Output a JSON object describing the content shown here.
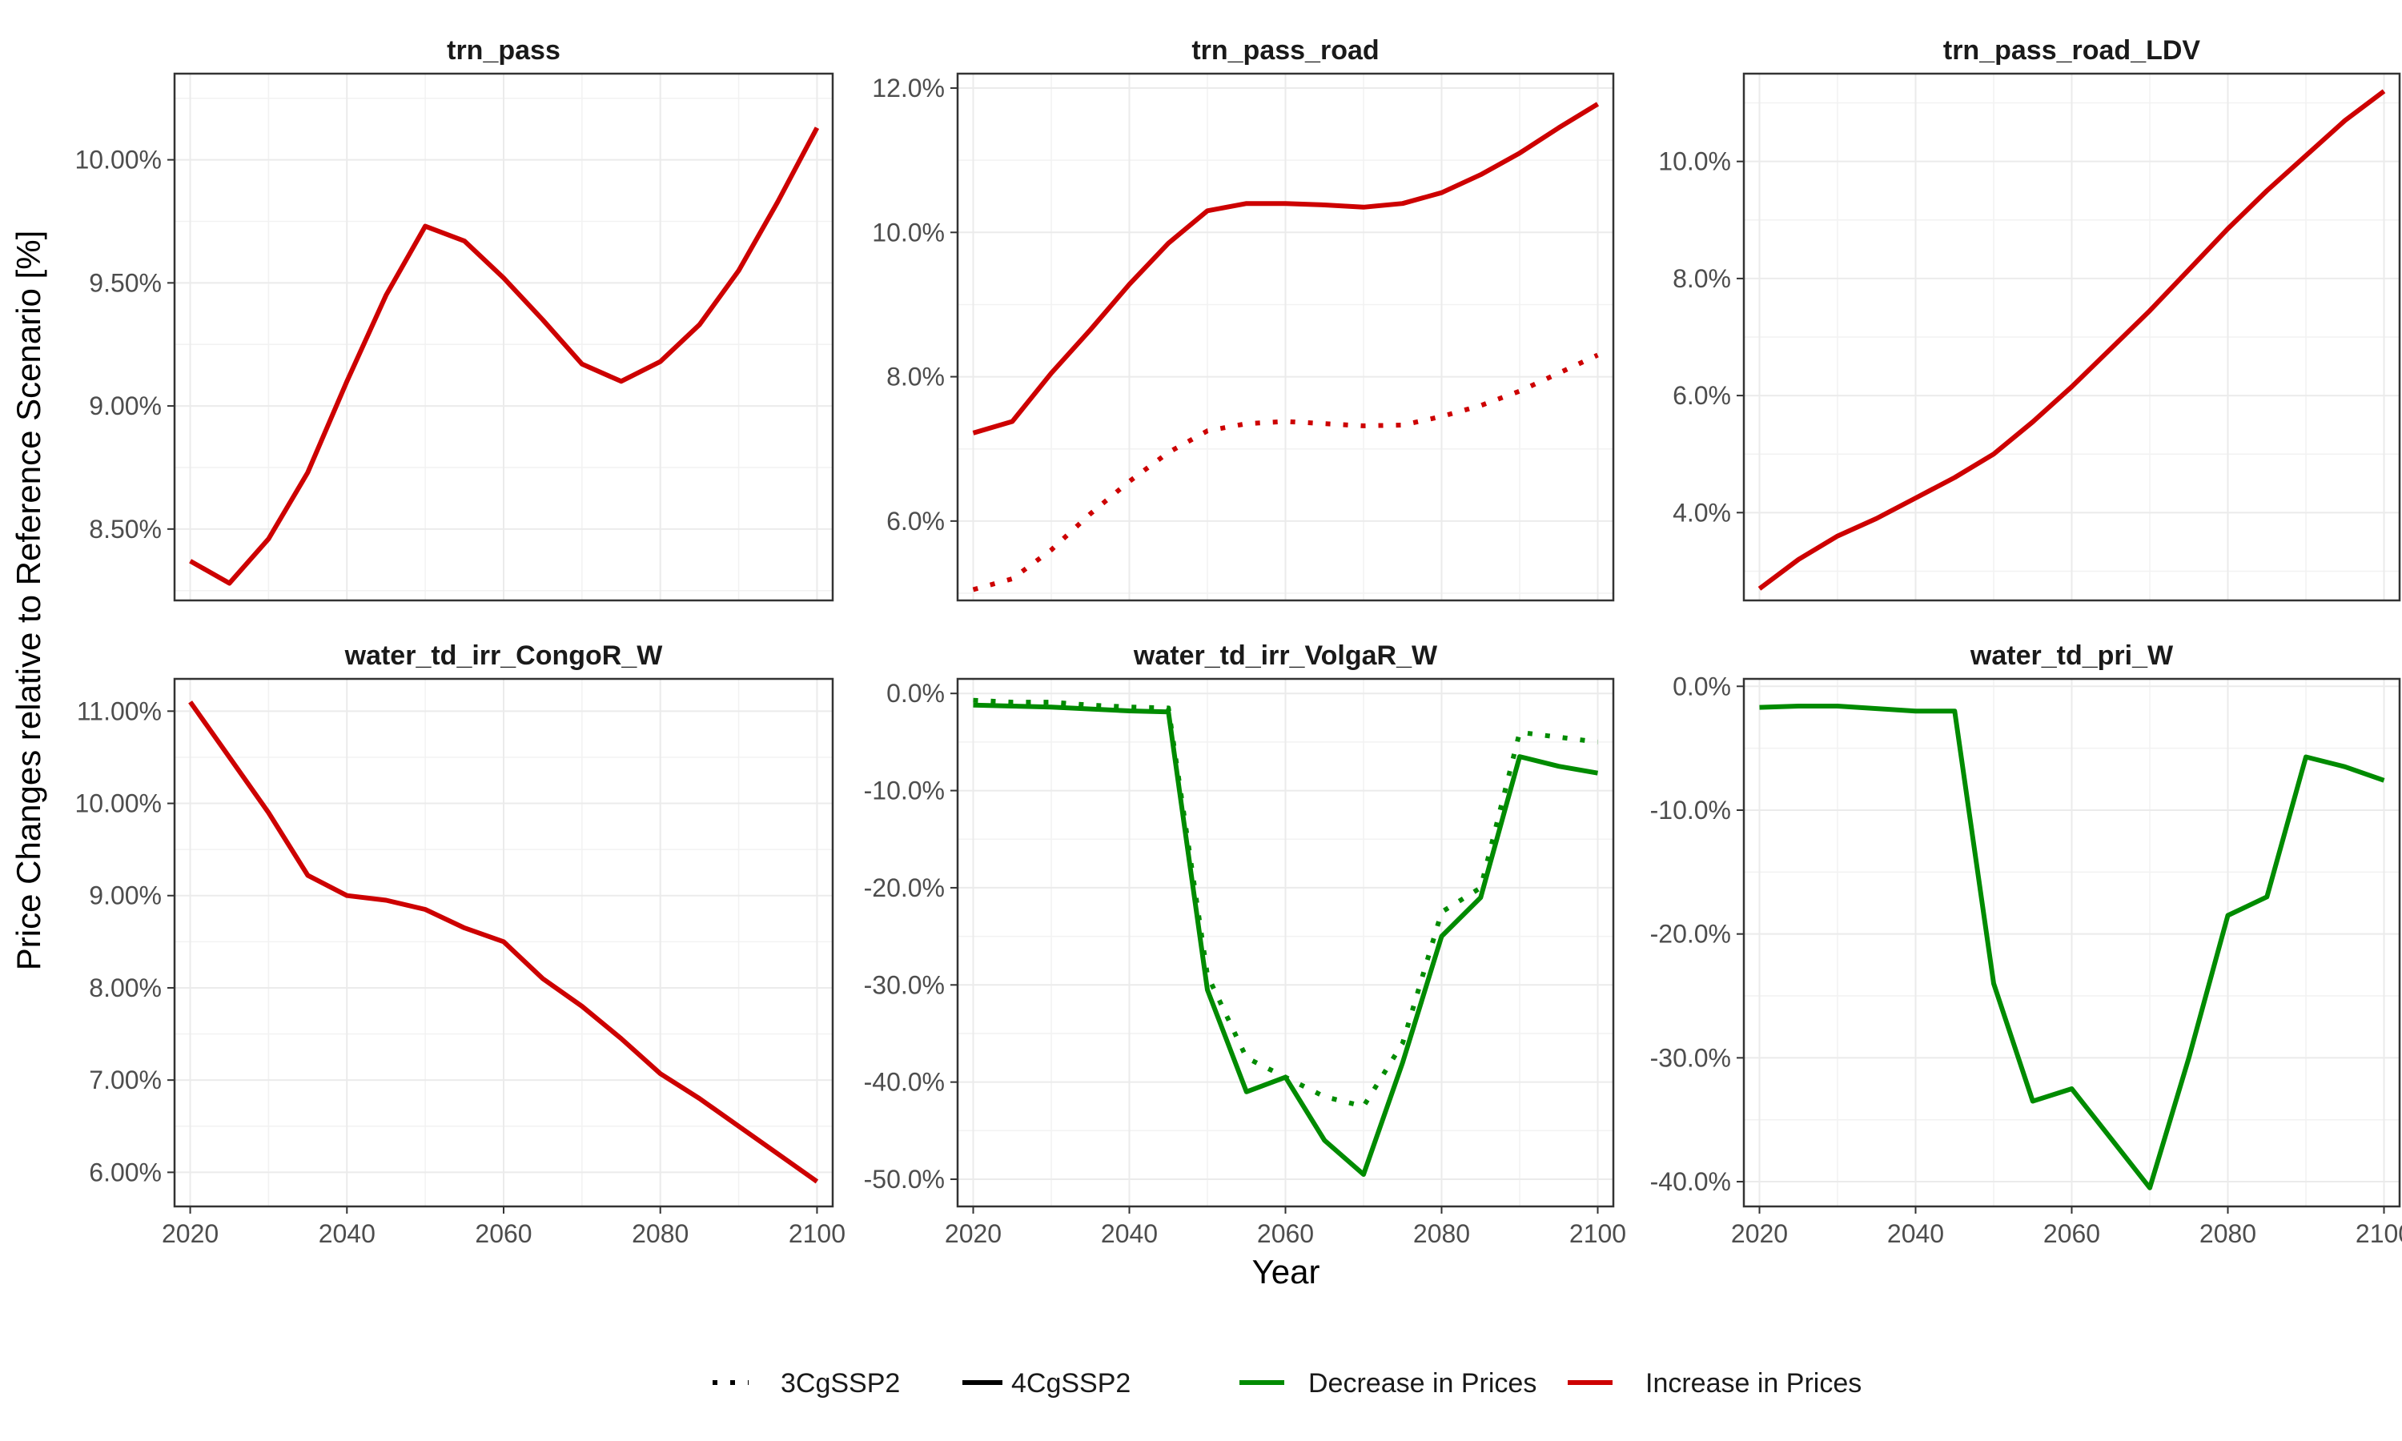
{
  "chart_data": {
    "type": "line",
    "xlabel": "Year",
    "ylabel": "Price Changes relative to Reference Scenario [%]",
    "legend": {
      "placement": "bottom",
      "linetype": [
        {
          "label": "3CgSSP2",
          "style": "dotted"
        },
        {
          "label": "4CgSSP2",
          "style": "solid"
        }
      ],
      "color": [
        {
          "label": "Decrease in Prices",
          "color": "#008B00"
        },
        {
          "label": "Increase in Prices",
          "color": "#CD0000"
        }
      ]
    },
    "x_ticks": [
      2020,
      2040,
      2060,
      2080,
      2100
    ],
    "xlim": [
      2018,
      2102
    ],
    "grid": true,
    "panels": [
      {
        "title": "trn_pass",
        "ylim": [
          8.21,
          10.35
        ],
        "y_ticks": [
          8.5,
          9.0,
          9.5,
          10.0
        ],
        "y_tick_labels": [
          "8.50%",
          "9.00%",
          "9.50%",
          "10.00%"
        ],
        "series": [
          {
            "scenario": "4CgSSP2",
            "style": "solid",
            "direction": "Increase in Prices",
            "color": "#CD0000",
            "x": [
              2020,
              2025,
              2030,
              2035,
              2040,
              2045,
              2050,
              2055,
              2060,
              2065,
              2070,
              2075,
              2080,
              2085,
              2090,
              2095,
              2100
            ],
            "y": [
              8.37,
              8.28,
              8.46,
              8.73,
              9.1,
              9.45,
              9.73,
              9.67,
              9.52,
              9.35,
              9.17,
              9.1,
              9.18,
              9.33,
              9.55,
              9.83,
              10.13
            ]
          }
        ]
      },
      {
        "title": "trn_pass_road",
        "ylim": [
          4.9,
          12.2
        ],
        "y_ticks": [
          6,
          8,
          10,
          12
        ],
        "y_tick_labels": [
          "6.0%",
          "8.0%",
          "10.0%",
          "12.0%"
        ],
        "series": [
          {
            "scenario": "3CgSSP2",
            "style": "dotted",
            "direction": "Increase in Prices",
            "color": "#CD0000",
            "x": [
              2020,
              2025,
              2030,
              2035,
              2040,
              2045,
              2050,
              2055,
              2060,
              2065,
              2070,
              2075,
              2080,
              2085,
              2090,
              2095,
              2100
            ],
            "y": [
              5.05,
              5.2,
              5.6,
              6.1,
              6.55,
              6.95,
              7.25,
              7.35,
              7.38,
              7.35,
              7.32,
              7.33,
              7.45,
              7.6,
              7.8,
              8.05,
              8.3
            ]
          },
          {
            "scenario": "4CgSSP2",
            "style": "solid",
            "direction": "Increase in Prices",
            "color": "#CD0000",
            "x": [
              2020,
              2025,
              2030,
              2035,
              2040,
              2045,
              2050,
              2055,
              2060,
              2065,
              2070,
              2075,
              2080,
              2085,
              2090,
              2095,
              2100
            ],
            "y": [
              7.22,
              7.38,
              8.05,
              8.65,
              9.28,
              9.85,
              10.3,
              10.4,
              10.4,
              10.38,
              10.35,
              10.4,
              10.55,
              10.8,
              11.1,
              11.45,
              11.78
            ]
          }
        ]
      },
      {
        "title": "trn_pass_road_LDV",
        "ylim": [
          2.5,
          11.5
        ],
        "y_ticks": [
          4,
          6,
          8,
          10
        ],
        "y_tick_labels": [
          "4.0%",
          "6.0%",
          "8.0%",
          "10.0%"
        ],
        "series": [
          {
            "scenario": "4CgSSP2",
            "style": "solid",
            "direction": "Increase in Prices",
            "color": "#CD0000",
            "x": [
              2020,
              2025,
              2030,
              2035,
              2040,
              2045,
              2050,
              2055,
              2060,
              2065,
              2070,
              2075,
              2080,
              2085,
              2090,
              2095,
              2100
            ],
            "y": [
              2.7,
              3.2,
              3.6,
              3.9,
              4.25,
              4.6,
              5.0,
              5.55,
              6.15,
              6.8,
              7.45,
              8.15,
              8.85,
              9.5,
              10.1,
              10.7,
              11.2
            ]
          }
        ]
      },
      {
        "title": "water_td_irr_CongoR_W",
        "ylim": [
          5.63,
          11.35
        ],
        "y_ticks": [
          6,
          7,
          8,
          9,
          10,
          11
        ],
        "y_tick_labels": [
          "6.00%",
          "7.00%",
          "8.00%",
          "9.00%",
          "10.00%",
          "11.00%"
        ],
        "series": [
          {
            "scenario": "4CgSSP2",
            "style": "solid",
            "direction": "Increase in Prices",
            "color": "#CD0000",
            "x": [
              2020,
              2025,
              2030,
              2035,
              2040,
              2045,
              2050,
              2055,
              2060,
              2065,
              2070,
              2075,
              2080,
              2085,
              2090,
              2095,
              2100
            ],
            "y": [
              11.1,
              10.5,
              9.9,
              9.22,
              9.0,
              8.95,
              8.85,
              8.65,
              8.5,
              8.1,
              7.8,
              7.45,
              7.07,
              6.8,
              6.5,
              6.2,
              5.9
            ]
          }
        ]
      },
      {
        "title": "water_td_irr_VolgaR_W",
        "ylim": [
          -52.8,
          1.5
        ],
        "y_ticks": [
          0,
          -10,
          -20,
          -30,
          -40,
          -50
        ],
        "y_tick_labels": [
          "0.0%",
          "-10.0%",
          "-20.0%",
          "-30.0%",
          "-40.0%",
          "-50.0%"
        ],
        "series": [
          {
            "scenario": "3CgSSP2",
            "style": "dotted",
            "direction": "Decrease in Prices",
            "color": "#008B00",
            "x": [
              2020,
              2025,
              2030,
              2035,
              2040,
              2045,
              2050,
              2055,
              2060,
              2065,
              2070,
              2075,
              2080,
              2085,
              2090,
              2095,
              2100
            ],
            "y": [
              -0.7,
              -0.9,
              -0.9,
              -1.2,
              -1.4,
              -1.5,
              -29.0,
              -37.5,
              -39.5,
              -41.5,
              -42.5,
              -36.0,
              -22.5,
              -20.0,
              -4.0,
              -4.5,
              -5.0
            ]
          },
          {
            "scenario": "4CgSSP2",
            "style": "solid",
            "direction": "Decrease in Prices",
            "color": "#008B00",
            "x": [
              2020,
              2025,
              2030,
              2035,
              2040,
              2045,
              2050,
              2055,
              2060,
              2065,
              2070,
              2075,
              2080,
              2085,
              2090,
              2095,
              2100
            ],
            "y": [
              -1.2,
              -1.3,
              -1.4,
              -1.6,
              -1.8,
              -1.9,
              -30.5,
              -41.0,
              -39.5,
              -46.0,
              -49.5,
              -38.0,
              -25.0,
              -21.0,
              -6.5,
              -7.5,
              -8.2
            ]
          }
        ]
      },
      {
        "title": "water_td_pri_W",
        "ylim": [
          -42.0,
          0.6
        ],
        "y_ticks": [
          0,
          -10,
          -20,
          -30,
          -40
        ],
        "y_tick_labels": [
          "0.0%",
          "-10.0%",
          "-20.0%",
          "-30.0%",
          "-40.0%"
        ],
        "series": [
          {
            "scenario": "4CgSSP2",
            "style": "solid",
            "direction": "Decrease in Prices",
            "color": "#008B00",
            "x": [
              2020,
              2025,
              2030,
              2035,
              2040,
              2045,
              2050,
              2055,
              2060,
              2065,
              2070,
              2075,
              2080,
              2085,
              2090,
              2095,
              2100
            ],
            "y": [
              -1.7,
              -1.6,
              -1.6,
              -1.8,
              -2.0,
              -2.0,
              -24.0,
              -33.5,
              -32.5,
              -36.5,
              -40.5,
              -30.0,
              -18.5,
              -17.0,
              -5.7,
              -6.5,
              -7.6
            ]
          }
        ]
      }
    ]
  }
}
